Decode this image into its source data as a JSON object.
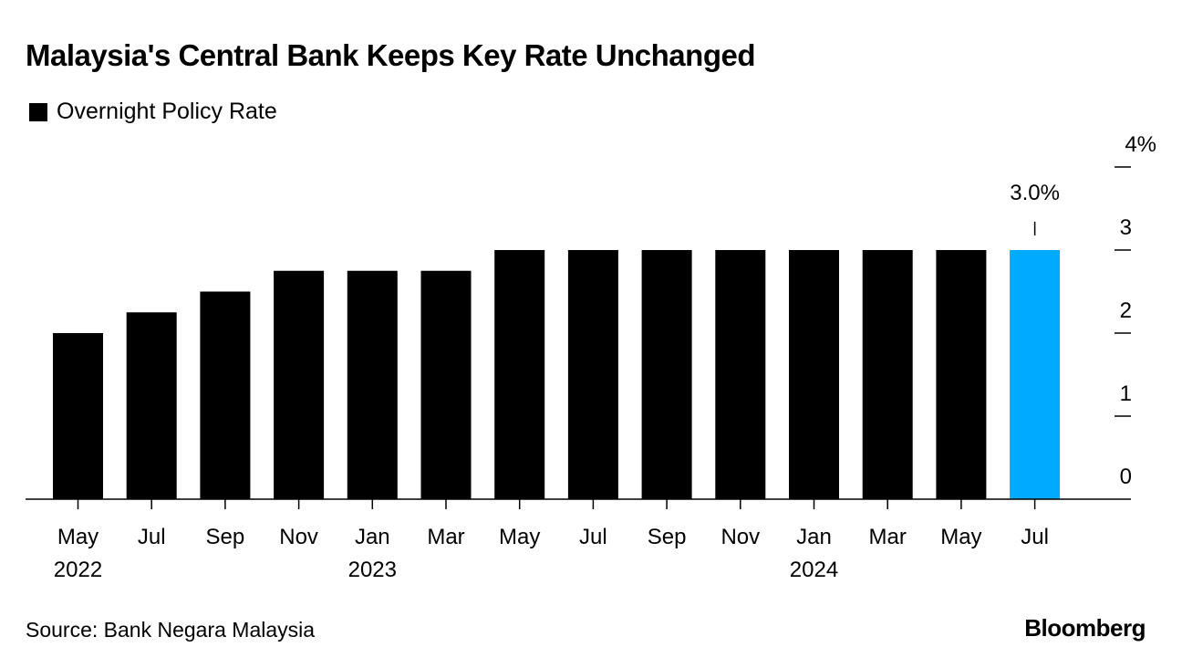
{
  "title": "Malaysia's Central Bank Keeps Key Rate Unchanged",
  "source": "Source: Bank Negara Malaysia",
  "brand": "Bloomberg",
  "colors": {
    "bar": "#000000",
    "highlight": "#00AAFF"
  },
  "chart_data": {
    "type": "bar",
    "title": "Malaysia's Central Bank Keeps Key Rate Unchanged",
    "legend": [
      "Overnight Policy Rate"
    ],
    "legend_position": "top-left",
    "categories": [
      "May",
      "Jul",
      "Sep",
      "Nov",
      "Jan",
      "Mar",
      "May",
      "Jul",
      "Sep",
      "Nov",
      "Jan",
      "Mar",
      "May",
      "Jul"
    ],
    "year_labels": [
      {
        "index": 0,
        "label": "2022"
      },
      {
        "index": 4,
        "label": "2023"
      },
      {
        "index": 10,
        "label": "2024"
      }
    ],
    "series": [
      {
        "name": "Overnight Policy Rate",
        "values": [
          2.0,
          2.25,
          2.5,
          2.75,
          2.75,
          2.75,
          3.0,
          3.0,
          3.0,
          3.0,
          3.0,
          3.0,
          3.0,
          3.0
        ]
      }
    ],
    "highlight_index": 13,
    "annotation": "3.0%",
    "yticks": [
      "0",
      "1",
      "2",
      "3",
      "4%"
    ],
    "ylim": [
      0,
      4
    ],
    "xlabel": "",
    "ylabel": "",
    "grid": false
  }
}
